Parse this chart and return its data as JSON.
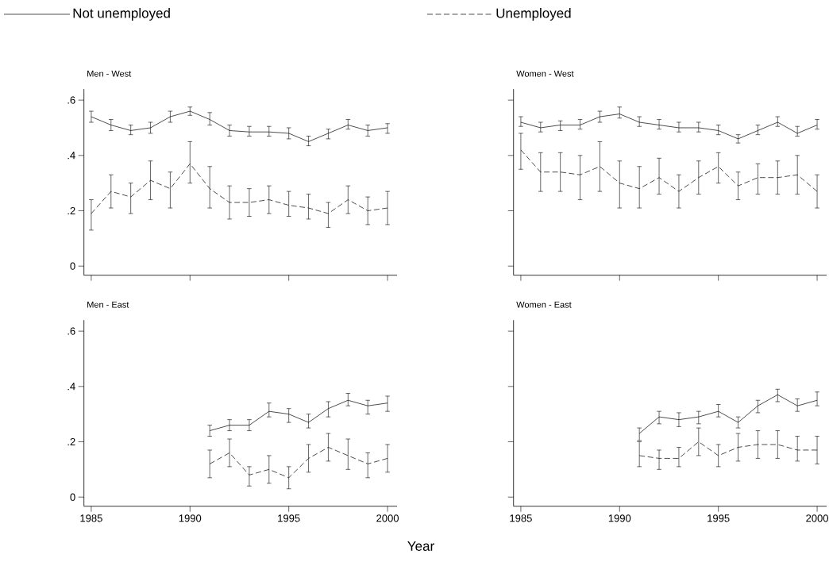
{
  "chart_data": [
    {
      "type": "line",
      "title": "Men - West",
      "legend": "top",
      "tick_labels": "y",
      "x": [
        1985,
        1986,
        1987,
        1988,
        1989,
        1990,
        1991,
        1992,
        1993,
        1994,
        1995,
        1996,
        1997,
        1998,
        1999,
        2000
      ],
      "xlim": [
        1984.63,
        2000.48
      ],
      "ylim": [
        -0.033,
        0.64
      ],
      "xticks": [
        1985,
        1990,
        1995,
        2000
      ],
      "yticks": [
        0,
        {
          "value": 0.2,
          "label": ".2"
        },
        {
          "value": 0.4,
          "label": ".4"
        },
        {
          "value": 0.6,
          "label": ".6"
        }
      ],
      "series": [
        {
          "name": "Not unemployed",
          "color": "#000000",
          "line_style": "solid",
          "values": [
            0.54,
            0.51,
            0.49,
            0.5,
            0.54,
            0.56,
            0.53,
            0.49,
            0.485,
            0.485,
            0.48,
            0.45,
            0.48,
            0.51,
            0.49,
            0.5
          ],
          "errors": [
            [
              0.52,
              0.56
            ],
            [
              0.49,
              0.53
            ],
            [
              0.475,
              0.51
            ],
            [
              0.48,
              0.52
            ],
            [
              0.52,
              0.56
            ],
            [
              0.545,
              0.575
            ],
            [
              0.51,
              0.555
            ],
            [
              0.47,
              0.51
            ],
            [
              0.47,
              0.505
            ],
            [
              0.47,
              0.505
            ],
            [
              0.46,
              0.5
            ],
            [
              0.435,
              0.47
            ],
            [
              0.46,
              0.495
            ],
            [
              0.495,
              0.53
            ],
            [
              0.47,
              0.51
            ],
            [
              0.48,
              0.515
            ]
          ]
        },
        {
          "name": "Unemployed",
          "color": "#000000",
          "line_style": "dashed",
          "values": [
            0.19,
            0.27,
            0.25,
            0.31,
            0.28,
            0.37,
            0.28,
            0.23,
            0.23,
            0.24,
            0.22,
            0.21,
            0.19,
            0.24,
            0.2,
            0.21
          ],
          "errors": [
            [
              0.13,
              0.24
            ],
            [
              0.21,
              0.33
            ],
            [
              0.19,
              0.3
            ],
            [
              0.24,
              0.38
            ],
            [
              0.21,
              0.34
            ],
            [
              0.3,
              0.45
            ],
            [
              0.21,
              0.36
            ],
            [
              0.17,
              0.29
            ],
            [
              0.18,
              0.28
            ],
            [
              0.19,
              0.29
            ],
            [
              0.18,
              0.27
            ],
            [
              0.17,
              0.26
            ],
            [
              0.14,
              0.23
            ],
            [
              0.19,
              0.29
            ],
            [
              0.15,
              0.25
            ],
            [
              0.15,
              0.27
            ]
          ]
        }
      ]
    },
    {
      "type": "line",
      "title": "Women - West",
      "tick_labels": false,
      "x": [
        1985,
        1986,
        1987,
        1988,
        1989,
        1990,
        1991,
        1992,
        1993,
        1994,
        1995,
        1996,
        1997,
        1998,
        1999,
        2000
      ],
      "xlim": [
        1984.63,
        2000.48
      ],
      "ylim": [
        -0.033,
        0.64
      ],
      "xticks": [
        1985,
        1990,
        1995,
        2000
      ],
      "yticks": [
        {
          "value": 0,
          "label": null
        },
        {
          "value": 0.2,
          "label": null
        },
        {
          "value": 0.4,
          "label": null
        },
        {
          "value": 0.6,
          "label": null
        }
      ],
      "series": [
        {
          "color": "#000000",
          "line_style": "solid",
          "values": [
            0.52,
            0.5,
            0.51,
            0.51,
            0.54,
            0.55,
            0.52,
            0.51,
            0.5,
            0.5,
            0.49,
            0.46,
            0.49,
            0.52,
            0.48,
            0.51
          ],
          "errors": [
            [
              0.505,
              0.54
            ],
            [
              0.485,
              0.52
            ],
            [
              0.49,
              0.525
            ],
            [
              0.495,
              0.53
            ],
            [
              0.52,
              0.56
            ],
            [
              0.535,
              0.575
            ],
            [
              0.505,
              0.54
            ],
            [
              0.495,
              0.53
            ],
            [
              0.485,
              0.52
            ],
            [
              0.485,
              0.52
            ],
            [
              0.475,
              0.51
            ],
            [
              0.445,
              0.475
            ],
            [
              0.475,
              0.51
            ],
            [
              0.505,
              0.54
            ],
            [
              0.47,
              0.505
            ],
            [
              0.495,
              0.53
            ]
          ]
        },
        {
          "color": "#000000",
          "line_style": "dashed",
          "values": [
            0.42,
            0.34,
            0.34,
            0.33,
            0.36,
            0.3,
            0.28,
            0.32,
            0.27,
            0.32,
            0.36,
            0.29,
            0.32,
            0.32,
            0.33,
            0.27
          ],
          "errors": [
            [
              0.35,
              0.48
            ],
            [
              0.27,
              0.41
            ],
            [
              0.27,
              0.41
            ],
            [
              0.24,
              0.4
            ],
            [
              0.27,
              0.45
            ],
            [
              0.21,
              0.38
            ],
            [
              0.21,
              0.36
            ],
            [
              0.26,
              0.39
            ],
            [
              0.21,
              0.33
            ],
            [
              0.26,
              0.38
            ],
            [
              0.3,
              0.41
            ],
            [
              0.24,
              0.34
            ],
            [
              0.26,
              0.37
            ],
            [
              0.26,
              0.38
            ],
            [
              0.26,
              0.4
            ],
            [
              0.21,
              0.33
            ]
          ]
        }
      ]
    },
    {
      "type": "line",
      "title": "Men - East",
      "xlabel": "Year",
      "x": [
        1991,
        1992,
        1993,
        1994,
        1995,
        1996,
        1997,
        1998,
        1999,
        2000
      ],
      "xlim": [
        1984.63,
        2000.48
      ],
      "ylim": [
        -0.033,
        0.64
      ],
      "xticks": [
        1985,
        1990,
        1995,
        2000
      ],
      "yticks": [
        0,
        {
          "value": 0.2,
          "label": ".2"
        },
        {
          "value": 0.4,
          "label": ".4"
        },
        {
          "value": 0.6,
          "label": ".6"
        }
      ],
      "series": [
        {
          "color": "#000000",
          "line_style": "solid",
          "values": [
            0.24,
            0.26,
            0.26,
            0.31,
            0.3,
            0.27,
            0.32,
            0.35,
            0.33,
            0.34
          ],
          "errors": [
            [
              0.22,
              0.26
            ],
            [
              0.24,
              0.28
            ],
            [
              0.24,
              0.28
            ],
            [
              0.29,
              0.34
            ],
            [
              0.27,
              0.32
            ],
            [
              0.25,
              0.3
            ],
            [
              0.29,
              0.345
            ],
            [
              0.33,
              0.375
            ],
            [
              0.3,
              0.35
            ],
            [
              0.31,
              0.365
            ]
          ]
        },
        {
          "color": "#000000",
          "line_style": "dashed",
          "values": [
            0.12,
            0.16,
            0.08,
            0.1,
            0.07,
            0.14,
            0.18,
            0.15,
            0.12,
            0.14
          ],
          "errors": [
            [
              0.07,
              0.17
            ],
            [
              0.11,
              0.21
            ],
            [
              0.04,
              0.11
            ],
            [
              0.05,
              0.15
            ],
            [
              0.03,
              0.11
            ],
            [
              0.09,
              0.19
            ],
            [
              0.13,
              0.23
            ],
            [
              0.1,
              0.21
            ],
            [
              0.07,
              0.16
            ],
            [
              0.09,
              0.19
            ]
          ]
        }
      ]
    },
    {
      "type": "line",
      "title": "Women - East",
      "tick_labels": "x",
      "x": [
        1991,
        1992,
        1993,
        1994,
        1995,
        1996,
        1997,
        1998,
        1999,
        2000
      ],
      "xlim": [
        1984.63,
        2000.48
      ],
      "ylim": [
        -0.033,
        0.64
      ],
      "xticks": [
        1985,
        1990,
        1995,
        2000
      ],
      "yticks": [
        {
          "value": 0,
          "label": null
        },
        {
          "value": 0.2,
          "label": null
        },
        {
          "value": 0.4,
          "label": null
        },
        {
          "value": 0.6,
          "label": null
        }
      ],
      "series": [
        {
          "color": "#000000",
          "line_style": "solid",
          "values": [
            0.23,
            0.29,
            0.28,
            0.29,
            0.31,
            0.27,
            0.33,
            0.37,
            0.33,
            0.35
          ],
          "errors": [
            [
              0.205,
              0.25
            ],
            [
              0.265,
              0.31
            ],
            [
              0.255,
              0.305
            ],
            [
              0.265,
              0.31
            ],
            [
              0.29,
              0.335
            ],
            [
              0.25,
              0.29
            ],
            [
              0.305,
              0.35
            ],
            [
              0.345,
              0.39
            ],
            [
              0.31,
              0.355
            ],
            [
              0.33,
              0.38
            ]
          ]
        },
        {
          "color": "#000000",
          "line_style": "dashed",
          "values": [
            0.15,
            0.14,
            0.14,
            0.2,
            0.15,
            0.18,
            0.19,
            0.19,
            0.17,
            0.17
          ],
          "errors": [
            [
              0.11,
              0.2
            ],
            [
              0.1,
              0.17
            ],
            [
              0.11,
              0.18
            ],
            [
              0.15,
              0.25
            ],
            [
              0.11,
              0.19
            ],
            [
              0.13,
              0.23
            ],
            [
              0.14,
              0.24
            ],
            [
              0.14,
              0.24
            ],
            [
              0.13,
              0.22
            ],
            [
              0.12,
              0.22
            ]
          ]
        }
      ]
    }
  ]
}
